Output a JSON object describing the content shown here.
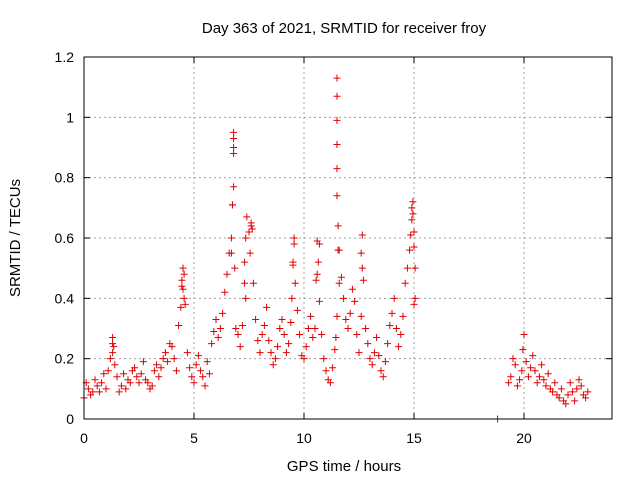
{
  "chart_data": {
    "type": "scatter",
    "title": "Day 363 of 2021, SRMTID for receiver froy",
    "xlabel": "GPS time / hours",
    "ylabel": "SRMTID / TECUs",
    "xlim": [
      0,
      24
    ],
    "ylim": [
      0,
      1.2
    ],
    "xticks": [
      0,
      5,
      10,
      15,
      20
    ],
    "xtick_labels": [
      "0",
      "5",
      "10",
      "15",
      "20"
    ],
    "yticks": [
      0,
      0.2,
      0.4,
      0.6,
      0.8,
      1.0,
      1.2
    ],
    "ytick_labels": [
      "0",
      "0.2",
      "0.4",
      "0.6",
      "0.8",
      "1",
      "1.2"
    ],
    "grid": true,
    "marker": "plus",
    "color": "#e00000",
    "series": [
      {
        "name": "SRMTID",
        "x": [
          0.0,
          0.1,
          0.2,
          0.3,
          0.4,
          0.5,
          0.6,
          0.7,
          0.8,
          0.9,
          1.0,
          1.1,
          1.2,
          1.3,
          1.35,
          1.4,
          1.5,
          1.6,
          1.7,
          1.8,
          1.9,
          2.0,
          2.1,
          2.2,
          2.3,
          2.4,
          2.5,
          2.6,
          2.7,
          2.8,
          2.9,
          3.0,
          3.1,
          3.2,
          3.3,
          3.4,
          3.5,
          3.6,
          3.7,
          3.8,
          3.9,
          4.0,
          4.1,
          4.2,
          4.3,
          4.4,
          4.45,
          4.5,
          4.55,
          4.6,
          4.7,
          4.8,
          4.9,
          5.0,
          5.1,
          5.2,
          5.3,
          5.4,
          5.5,
          5.6,
          5.7,
          5.8,
          5.9,
          6.0,
          6.1,
          6.2,
          6.3,
          6.4,
          6.5,
          6.6,
          6.7,
          6.75,
          6.8,
          6.85,
          6.9,
          7.0,
          7.1,
          7.2,
          7.3,
          7.35,
          7.4,
          7.5,
          7.55,
          7.6,
          7.7,
          7.8,
          7.9,
          8.0,
          8.1,
          8.2,
          8.3,
          8.4,
          8.5,
          8.6,
          8.7,
          8.8,
          8.9,
          9.0,
          9.1,
          9.2,
          9.3,
          9.4,
          9.45,
          9.5,
          9.55,
          9.6,
          9.7,
          9.8,
          9.9,
          10.0,
          10.1,
          10.2,
          10.3,
          10.4,
          10.5,
          10.55,
          10.6,
          10.65,
          10.7,
          10.8,
          10.9,
          11.0,
          11.1,
          11.2,
          11.3,
          11.4,
          11.45,
          11.5,
          11.55,
          11.6,
          11.7,
          11.8,
          11.9,
          12.0,
          12.1,
          12.2,
          12.3,
          12.4,
          12.5,
          12.6,
          12.65,
          12.7,
          12.8,
          12.9,
          13.0,
          13.1,
          13.2,
          13.3,
          13.4,
          13.5,
          13.6,
          13.7,
          13.8,
          13.9,
          14.0,
          14.1,
          14.2,
          14.3,
          14.4,
          14.5,
          14.6,
          14.7,
          14.8,
          14.85,
          14.9,
          14.95,
          15.0,
          15.05,
          18.8,
          19.3,
          19.4,
          19.5,
          19.6,
          19.7,
          19.8,
          19.9,
          19.95,
          20.0,
          20.1,
          20.2,
          20.3,
          20.4,
          20.5,
          20.6,
          20.7,
          20.8,
          20.9,
          21.0,
          21.1,
          21.2,
          21.3,
          21.4,
          21.5,
          21.6,
          21.7,
          21.8,
          21.9,
          22.0,
          22.1,
          22.2,
          22.3,
          22.4,
          22.5,
          22.6,
          22.7,
          22.8,
          22.9,
          6.8,
          6.8,
          6.8,
          6.8,
          6.75,
          6.7,
          7.3,
          7.35,
          7.6,
          7.65,
          9.5,
          9.55,
          10.6,
          10.7,
          11.5,
          11.5,
          11.5,
          11.5,
          11.5,
          11.5,
          11.55,
          11.6,
          12.6,
          12.65,
          14.9,
          14.95,
          15.0,
          15.0,
          15.05,
          4.45,
          4.5,
          4.55,
          1.3,
          1.3
        ],
        "y": [
          0.07,
          0.12,
          0.1,
          0.08,
          0.09,
          0.13,
          0.11,
          0.09,
          0.12,
          0.15,
          0.1,
          0.16,
          0.2,
          0.27,
          0.24,
          0.18,
          0.14,
          0.09,
          0.11,
          0.15,
          0.1,
          0.13,
          0.12,
          0.16,
          0.17,
          0.14,
          0.12,
          0.15,
          0.19,
          0.13,
          0.12,
          0.1,
          0.11,
          0.16,
          0.18,
          0.14,
          0.17,
          0.2,
          0.22,
          0.19,
          0.25,
          0.24,
          0.2,
          0.16,
          0.31,
          0.37,
          0.44,
          0.5,
          0.48,
          0.38,
          0.22,
          0.17,
          0.14,
          0.12,
          0.18,
          0.21,
          0.16,
          0.14,
          0.11,
          0.19,
          0.15,
          0.25,
          0.29,
          0.33,
          0.27,
          0.3,
          0.35,
          0.42,
          0.48,
          0.55,
          0.6,
          0.71,
          0.77,
          0.5,
          0.3,
          0.28,
          0.24,
          0.31,
          0.52,
          0.6,
          0.67,
          0.62,
          0.55,
          0.64,
          0.45,
          0.33,
          0.26,
          0.22,
          0.28,
          0.31,
          0.37,
          0.26,
          0.22,
          0.18,
          0.2,
          0.24,
          0.3,
          0.33,
          0.28,
          0.22,
          0.25,
          0.32,
          0.4,
          0.51,
          0.6,
          0.45,
          0.36,
          0.28,
          0.21,
          0.2,
          0.24,
          0.3,
          0.34,
          0.27,
          0.3,
          0.46,
          0.59,
          0.52,
          0.39,
          0.28,
          0.2,
          0.16,
          0.13,
          0.12,
          0.17,
          0.23,
          0.27,
          0.34,
          0.56,
          0.45,
          0.47,
          0.4,
          0.33,
          0.3,
          0.35,
          0.43,
          0.39,
          0.28,
          0.22,
          0.34,
          0.61,
          0.46,
          0.3,
          0.25,
          0.2,
          0.18,
          0.22,
          0.27,
          0.21,
          0.16,
          0.14,
          0.19,
          0.25,
          0.31,
          0.35,
          0.4,
          0.3,
          0.24,
          0.28,
          0.34,
          0.45,
          0.5,
          0.56,
          0.61,
          0.66,
          0.72,
          0.38,
          0.4,
          0.0,
          0.12,
          0.14,
          0.2,
          0.18,
          0.11,
          0.13,
          0.16,
          0.23,
          0.28,
          0.19,
          0.14,
          0.17,
          0.21,
          0.16,
          0.12,
          0.14,
          0.18,
          0.13,
          0.11,
          0.15,
          0.1,
          0.09,
          0.12,
          0.08,
          0.07,
          0.1,
          0.06,
          0.05,
          0.08,
          0.12,
          0.09,
          0.06,
          0.1,
          0.13,
          0.11,
          0.08,
          0.07,
          0.09,
          0.95,
          0.93,
          0.9,
          0.88,
          0.71,
          0.55,
          0.45,
          0.4,
          0.65,
          0.63,
          0.52,
          0.58,
          0.48,
          0.58,
          1.13,
          1.07,
          0.99,
          0.91,
          0.83,
          0.74,
          0.64,
          0.56,
          0.55,
          0.5,
          0.7,
          0.68,
          0.62,
          0.57,
          0.5,
          0.46,
          0.43,
          0.4,
          0.25,
          0.22
        ]
      }
    ]
  }
}
